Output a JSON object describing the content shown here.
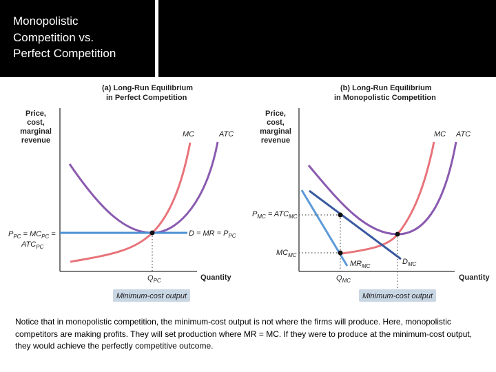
{
  "slide": {
    "title": "Monopolistic\nCompetition vs.\nPerfect Competition",
    "caption": "Notice that in monopolistic competition, the minimum-cost output is not where the firms will produce.  Here, monopolistic competitors are making profits.  They will set production where MR = MC.  If they were to produce at the minimum-cost output, they would achieve the perfectly competitive outcome."
  },
  "colors": {
    "mc": "#e8737a",
    "atc": "#8a5bb0",
    "demand_pc": "#4a8fd4",
    "demand_mc": "#3a5aa0",
    "mr_mc": "#5b9ad8",
    "badge": "#c9d6e4"
  },
  "panel_a": {
    "title_line1": "(a) Long-Run Equilibrium",
    "title_line2": "in Perfect Competition",
    "y_axis_label": [
      "Price,",
      "cost,",
      "marginal",
      "revenue"
    ],
    "x_axis_label": "Quantity",
    "mc_label": "MC",
    "atc_label": "ATC",
    "demand_label": "D = MR = P",
    "demand_label_sub": "PC",
    "price_label_main": "P",
    "price_label_sub1": "PC",
    "price_label_mid": " = MC",
    "price_label_sub2": "PC",
    "price_label_tail": " =",
    "price_label_line2": "ATC",
    "price_label_line2_sub": "PC",
    "q_label": "Q",
    "q_label_sub": "PC",
    "badge": "Minimum-cost output"
  },
  "panel_b": {
    "title_line1": "(b) Long-Run Equilibrium",
    "title_line2": "in Monopolistic Competition",
    "y_axis_label": [
      "Price,",
      "cost,",
      "marginal",
      "revenue"
    ],
    "x_axis_label": "Quantity",
    "mc_label": "MC",
    "atc_label": "ATC",
    "price_label_main": "P",
    "price_label_sub": "MC",
    "price_label_mid": " = ATC",
    "price_label_sub2": "MC",
    "mc_level_label": "MC",
    "mc_level_sub": "MC",
    "mr_label": "MR",
    "mr_label_sub": "MC",
    "d_label": "D",
    "d_label_sub": "MC",
    "q_label": "Q",
    "q_label_sub": "MC",
    "badge": "Minimum-cost output"
  }
}
